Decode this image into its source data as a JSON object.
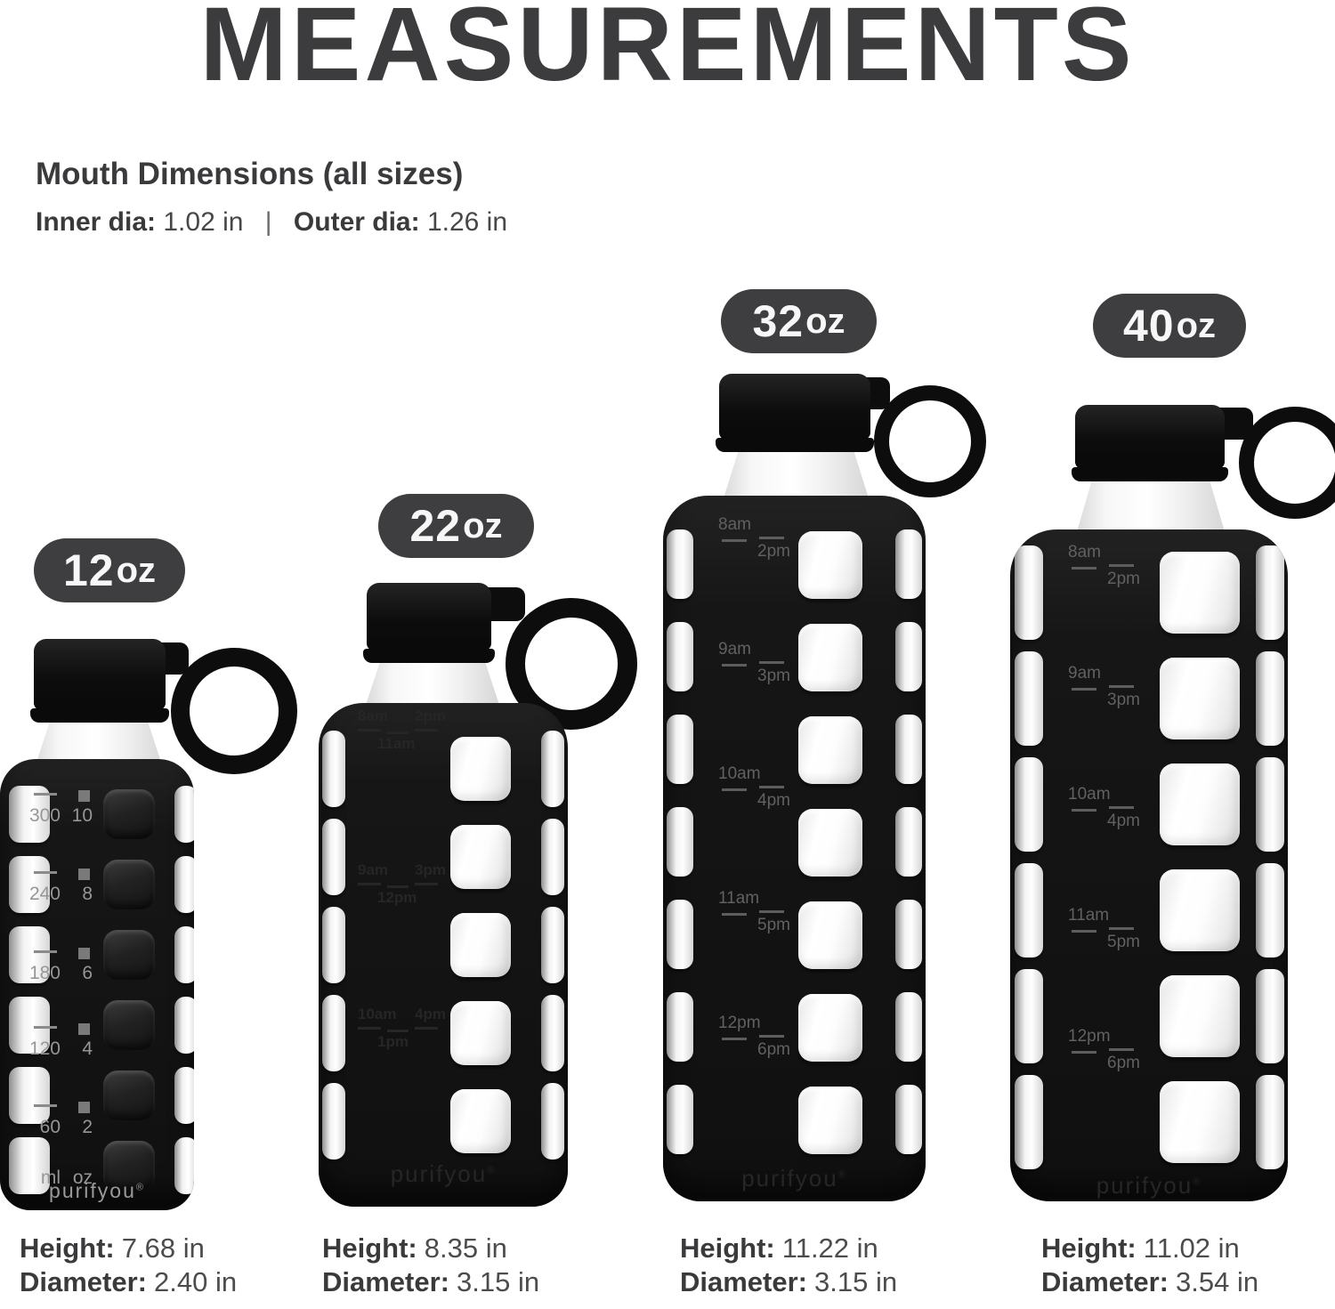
{
  "title": "MEASUREMENTS",
  "mouth": {
    "heading": "Mouth Dimensions (all sizes)",
    "inner_label": "Inner dia:",
    "inner_value": "1.02 in",
    "separator": "|",
    "outer_label": "Outer dia:",
    "outer_value": "1.26 in"
  },
  "brand": {
    "logo": "purifyou",
    "mark": "®"
  },
  "colors": {
    "text_dark": "#3c3c3e",
    "badge_bg": "#3e3e40",
    "badge_text": "#f7f7f7",
    "bottle_black": "#141414",
    "marking_gray": "#5d5d5d",
    "scale_gray": "#969696"
  },
  "bottles": [
    {
      "badge": {
        "number": "12",
        "unit": "oz"
      },
      "scale": [
        {
          "vol": "300",
          "oz": "10"
        },
        {
          "vol": "240",
          "oz": "8"
        },
        {
          "vol": "180",
          "oz": "6"
        },
        {
          "vol": "120",
          "oz": "4"
        },
        {
          "vol": "60",
          "oz": "2"
        },
        {
          "vol": "ml",
          "oz": "oz"
        }
      ],
      "spec": {
        "height_label": "Height:",
        "height_value": "7.68 in",
        "diameter_label": "Diameter:",
        "diameter_value": "2.40 in"
      }
    },
    {
      "badge": {
        "number": "22",
        "unit": "oz"
      },
      "times": [
        {
          "start": "8am",
          "end": "2pm",
          "mid": "11am"
        },
        {
          "start": "9am",
          "end": "3pm",
          "mid": "12pm"
        },
        {
          "start": "10am",
          "end": "4pm",
          "mid": "1pm"
        }
      ],
      "spec": {
        "height_label": "Height:",
        "height_value": "8.35 in",
        "diameter_label": "Diameter:",
        "diameter_value": "3.15 in"
      }
    },
    {
      "badge": {
        "number": "32",
        "unit": "oz"
      },
      "times": [
        {
          "start": "8am",
          "end": "2pm"
        },
        {
          "start": "9am",
          "end": "3pm"
        },
        {
          "start": "10am",
          "end": "4pm"
        },
        {
          "start": "11am",
          "end": "5pm"
        },
        {
          "start": "12pm",
          "end": "6pm"
        }
      ],
      "spec": {
        "height_label": "Height:",
        "height_value": "11.22 in",
        "diameter_label": "Diameter:",
        "diameter_value": "3.15 in"
      }
    },
    {
      "badge": {
        "number": "40",
        "unit": "oz"
      },
      "times": [
        {
          "start": "8am",
          "end": "2pm"
        },
        {
          "start": "9am",
          "end": "3pm"
        },
        {
          "start": "10am",
          "end": "4pm"
        },
        {
          "start": "11am",
          "end": "5pm"
        },
        {
          "start": "12pm",
          "end": "6pm"
        }
      ],
      "spec": {
        "height_label": "Height:",
        "height_value": "11.02 in",
        "diameter_label": "Diameter:",
        "diameter_value": "3.54 in"
      }
    }
  ]
}
